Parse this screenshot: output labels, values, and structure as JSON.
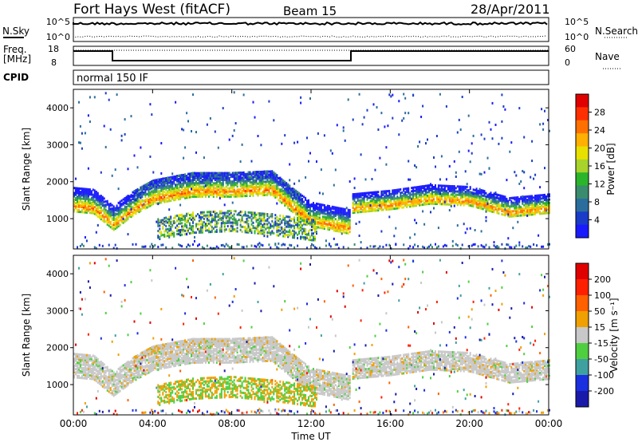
{
  "header": {
    "title": "Fort Hays West (fitACF)",
    "beam": "Beam 15",
    "date": "28/Apr/2011"
  },
  "noise_panel": {
    "left_label": "N.Sky",
    "right_label": "N.Search",
    "left_ticks": [
      "10^5",
      "10^0"
    ],
    "right_ticks": [
      "10^5",
      "10^0"
    ]
  },
  "freq_panel": {
    "label_line1": "Freq.",
    "label_line2": "[MHz]",
    "right_label": "Nave",
    "left_ticks": [
      "18",
      "8"
    ],
    "right_ticks": [
      "60",
      "0"
    ]
  },
  "cpid_panel": {
    "label": "CPID",
    "mode": "normal 150 IF"
  },
  "chart_data": [
    {
      "type": "heatmap",
      "panel": "power",
      "ylabel": "Slant Range [km]",
      "y_ticks": [
        "4000",
        "3000",
        "2000",
        "1000"
      ],
      "ylim": [
        180,
        4500
      ],
      "xlim": [
        0,
        24
      ],
      "colorbar": {
        "label": "Power [dB]",
        "ticks": [
          "28",
          "24",
          "20",
          "16",
          "12",
          "8",
          "4"
        ],
        "colors": [
          "#1a1aff",
          "#1a3cc8",
          "#2b6e9e",
          "#3b8c6e",
          "#2bb52b",
          "#a8d32b",
          "#e8e000",
          "#ffb000",
          "#ff7000",
          "#ff3000",
          "#e00000"
        ]
      },
      "bands": [
        {
          "name": "main-echo",
          "points": [
            [
              0,
              1550
            ],
            [
              1,
              1500
            ],
            [
              2,
              1050
            ],
            [
              3,
              1450
            ],
            [
              4,
              1750
            ],
            [
              6,
              1950
            ],
            [
              8,
              1950
            ],
            [
              10,
              2000
            ],
            [
              11,
              1550
            ],
            [
              12,
              1150
            ],
            [
              13.9,
              950
            ]
          ]
        },
        {
          "name": "lower-echo",
          "points": [
            [
              4,
              600
            ],
            [
              6,
              800
            ],
            [
              8,
              850
            ],
            [
              10,
              750
            ],
            [
              12,
              600
            ]
          ]
        },
        {
          "name": "evening-echo",
          "points": [
            [
              14,
              1450
            ],
            [
              16,
              1550
            ],
            [
              18,
              1700
            ],
            [
              20,
              1650
            ],
            [
              22,
              1350
            ],
            [
              24,
              1450
            ]
          ]
        }
      ]
    },
    {
      "type": "heatmap",
      "panel": "velocity",
      "ylabel": "Slant Range [km]",
      "y_ticks": [
        "4000",
        "3000",
        "2000",
        "1000"
      ],
      "ylim": [
        180,
        4500
      ],
      "xlim": [
        0,
        24
      ],
      "xlabel": "Time UT",
      "x_ticks": [
        "00:00",
        "04:00",
        "08:00",
        "12:00",
        "16:00",
        "20:00",
        "00:00"
      ],
      "colorbar": {
        "label": "Velocity [m s⁻¹]",
        "ticks": [
          "200",
          "100",
          "50",
          "15",
          "-15",
          "-50",
          "-100",
          "-200"
        ],
        "colors": [
          "#1a1aaa",
          "#1a30e0",
          "#3fa0a0",
          "#4fcf3f",
          "#c8c8c8",
          "#f0a000",
          "#ff6000",
          "#ff2000",
          "#e00000"
        ]
      }
    }
  ]
}
